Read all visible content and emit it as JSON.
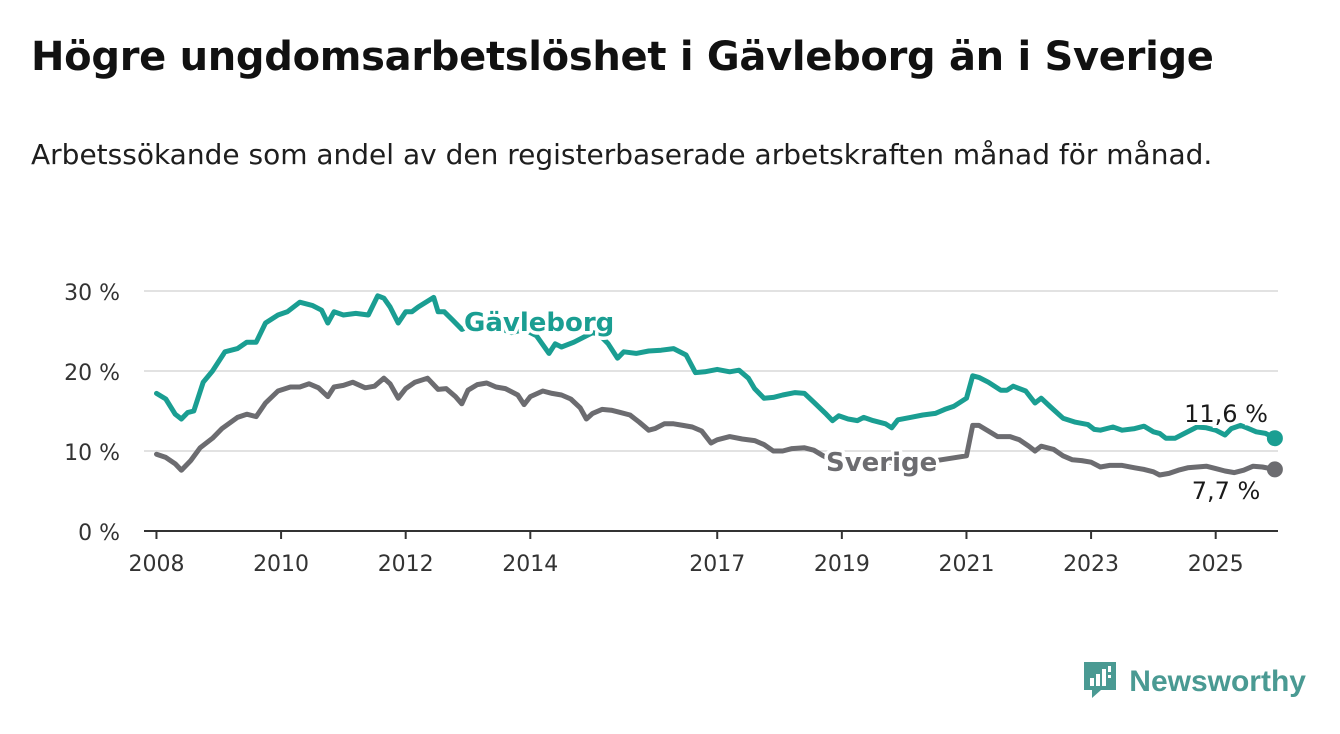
{
  "title": "Högre ungdomsarbetslöshet i Gävleborg än i Sverige",
  "subtitle": "Arbetssökande som andel av den registerbaserade arbetskraften månad för månad.",
  "brand": {
    "name": "Newsworthy",
    "icon": "bar-chart-logo-icon",
    "color": "#4a9a93"
  },
  "chart_data": {
    "type": "line",
    "x_ticks": [
      "2008",
      "2010",
      "2012",
      "2014",
      "2017",
      "2019",
      "2021",
      "2023",
      "2025"
    ],
    "y_ticks": [
      "0 %",
      "10 %",
      "20 %",
      "30 %"
    ],
    "ylim": [
      0,
      30
    ],
    "xlim": [
      2007.8,
      2026.0
    ],
    "grid": true,
    "series": [
      {
        "name": "Gävleborg",
        "color": "#1a9e92",
        "end_label": "11,6 %",
        "points": [
          [
            2008.0,
            17.2
          ],
          [
            2008.15,
            16.5
          ],
          [
            2008.3,
            14.6
          ],
          [
            2008.4,
            14.0
          ],
          [
            2008.5,
            14.8
          ],
          [
            2008.6,
            15.0
          ],
          [
            2008.75,
            18.6
          ],
          [
            2008.9,
            20.0
          ],
          [
            2009.1,
            22.4
          ],
          [
            2009.3,
            22.8
          ],
          [
            2009.45,
            23.6
          ],
          [
            2009.6,
            23.6
          ],
          [
            2009.75,
            26.0
          ],
          [
            2009.95,
            27.0
          ],
          [
            2010.1,
            27.4
          ],
          [
            2010.3,
            28.6
          ],
          [
            2010.5,
            28.2
          ],
          [
            2010.65,
            27.6
          ],
          [
            2010.75,
            26.0
          ],
          [
            2010.85,
            27.4
          ],
          [
            2011.0,
            27.0
          ],
          [
            2011.2,
            27.2
          ],
          [
            2011.4,
            27.0
          ],
          [
            2011.55,
            29.4
          ],
          [
            2011.65,
            29.1
          ],
          [
            2011.75,
            28.0
          ],
          [
            2011.88,
            26.0
          ],
          [
            2012.0,
            27.4
          ],
          [
            2012.1,
            27.4
          ],
          [
            2012.2,
            28.0
          ],
          [
            2012.45,
            29.2
          ],
          [
            2012.52,
            27.4
          ],
          [
            2012.62,
            27.4
          ],
          [
            2012.75,
            26.4
          ],
          [
            2012.9,
            25.2
          ],
          [
            2013.2,
            26.2
          ],
          [
            2013.7,
            24.8
          ],
          [
            2013.9,
            25.2
          ],
          [
            2014.1,
            24.4
          ],
          [
            2014.3,
            22.2
          ],
          [
            2014.4,
            23.4
          ],
          [
            2014.5,
            23.0
          ],
          [
            2014.7,
            23.6
          ],
          [
            2015.0,
            24.8
          ],
          [
            2015.1,
            24.6
          ],
          [
            2015.25,
            23.4
          ],
          [
            2015.4,
            21.6
          ],
          [
            2015.5,
            22.4
          ],
          [
            2015.7,
            22.2
          ],
          [
            2015.9,
            22.5
          ],
          [
            2016.1,
            22.6
          ],
          [
            2016.3,
            22.8
          ],
          [
            2016.5,
            22.0
          ],
          [
            2016.65,
            19.8
          ],
          [
            2016.8,
            19.9
          ],
          [
            2017.0,
            20.2
          ],
          [
            2017.2,
            19.9
          ],
          [
            2017.35,
            20.1
          ],
          [
            2017.5,
            19.1
          ],
          [
            2017.6,
            17.8
          ],
          [
            2017.75,
            16.6
          ],
          [
            2017.9,
            16.7
          ],
          [
            2018.05,
            17.0
          ],
          [
            2018.25,
            17.3
          ],
          [
            2018.4,
            17.2
          ],
          [
            2018.55,
            16.1
          ],
          [
            2018.75,
            14.6
          ],
          [
            2018.85,
            13.8
          ],
          [
            2018.95,
            14.4
          ],
          [
            2019.1,
            14.0
          ],
          [
            2019.25,
            13.8
          ],
          [
            2019.35,
            14.2
          ],
          [
            2019.5,
            13.8
          ],
          [
            2019.7,
            13.4
          ],
          [
            2019.8,
            12.9
          ],
          [
            2019.9,
            13.9
          ],
          [
            2020.1,
            14.2
          ],
          [
            2020.3,
            14.5
          ],
          [
            2020.5,
            14.7
          ],
          [
            2020.65,
            15.2
          ],
          [
            2020.8,
            15.6
          ],
          [
            2021.0,
            16.6
          ],
          [
            2021.1,
            19.4
          ],
          [
            2021.2,
            19.2
          ],
          [
            2021.35,
            18.6
          ],
          [
            2021.55,
            17.6
          ],
          [
            2021.65,
            17.6
          ],
          [
            2021.75,
            18.1
          ],
          [
            2021.95,
            17.5
          ],
          [
            2022.1,
            16.0
          ],
          [
            2022.2,
            16.6
          ],
          [
            2022.35,
            15.5
          ],
          [
            2022.55,
            14.1
          ],
          [
            2022.75,
            13.6
          ],
          [
            2022.95,
            13.3
          ],
          [
            2023.05,
            12.7
          ],
          [
            2023.15,
            12.6
          ],
          [
            2023.35,
            13.0
          ],
          [
            2023.5,
            12.6
          ],
          [
            2023.7,
            12.8
          ],
          [
            2023.85,
            13.1
          ],
          [
            2024.0,
            12.4
          ],
          [
            2024.1,
            12.2
          ],
          [
            2024.2,
            11.6
          ],
          [
            2024.35,
            11.6
          ],
          [
            2024.5,
            12.2
          ],
          [
            2024.7,
            13.0
          ],
          [
            2024.85,
            12.9
          ],
          [
            2025.0,
            12.6
          ],
          [
            2025.15,
            12.0
          ],
          [
            2025.25,
            12.8
          ],
          [
            2025.4,
            13.2
          ],
          [
            2025.5,
            12.9
          ],
          [
            2025.65,
            12.4
          ],
          [
            2025.8,
            12.2
          ],
          [
            2025.95,
            11.6
          ]
        ]
      },
      {
        "name": "Sverige",
        "color": "#6c6c70",
        "end_label": "7,7 %",
        "points": [
          [
            2008.0,
            9.6
          ],
          [
            2008.15,
            9.2
          ],
          [
            2008.3,
            8.4
          ],
          [
            2008.4,
            7.6
          ],
          [
            2008.55,
            8.8
          ],
          [
            2008.7,
            10.4
          ],
          [
            2008.9,
            11.6
          ],
          [
            2009.05,
            12.8
          ],
          [
            2009.3,
            14.2
          ],
          [
            2009.45,
            14.6
          ],
          [
            2009.6,
            14.3
          ],
          [
            2009.75,
            16.0
          ],
          [
            2009.95,
            17.5
          ],
          [
            2010.15,
            18.0
          ],
          [
            2010.3,
            18.0
          ],
          [
            2010.45,
            18.4
          ],
          [
            2010.6,
            17.9
          ],
          [
            2010.75,
            16.8
          ],
          [
            2010.85,
            18.0
          ],
          [
            2011.0,
            18.2
          ],
          [
            2011.15,
            18.6
          ],
          [
            2011.35,
            17.9
          ],
          [
            2011.5,
            18.1
          ],
          [
            2011.65,
            19.1
          ],
          [
            2011.75,
            18.4
          ],
          [
            2011.88,
            16.6
          ],
          [
            2012.0,
            17.8
          ],
          [
            2012.15,
            18.6
          ],
          [
            2012.35,
            19.1
          ],
          [
            2012.52,
            17.7
          ],
          [
            2012.65,
            17.8
          ],
          [
            2012.8,
            16.8
          ],
          [
            2012.9,
            15.9
          ],
          [
            2013.0,
            17.6
          ],
          [
            2013.15,
            18.3
          ],
          [
            2013.3,
            18.5
          ],
          [
            2013.45,
            18.0
          ],
          [
            2013.6,
            17.8
          ],
          [
            2013.8,
            17.0
          ],
          [
            2013.9,
            15.8
          ],
          [
            2014.0,
            16.8
          ],
          [
            2014.2,
            17.5
          ],
          [
            2014.35,
            17.2
          ],
          [
            2014.5,
            17.0
          ],
          [
            2014.65,
            16.5
          ],
          [
            2014.8,
            15.4
          ],
          [
            2014.9,
            14.0
          ],
          [
            2015.0,
            14.7
          ],
          [
            2015.15,
            15.2
          ],
          [
            2015.3,
            15.1
          ],
          [
            2015.45,
            14.8
          ],
          [
            2015.6,
            14.5
          ],
          [
            2015.75,
            13.6
          ],
          [
            2015.9,
            12.6
          ],
          [
            2016.0,
            12.8
          ],
          [
            2016.15,
            13.4
          ],
          [
            2016.3,
            13.4
          ],
          [
            2016.45,
            13.2
          ],
          [
            2016.6,
            13.0
          ],
          [
            2016.75,
            12.5
          ],
          [
            2016.9,
            11.0
          ],
          [
            2017.0,
            11.4
          ],
          [
            2017.2,
            11.8
          ],
          [
            2017.4,
            11.5
          ],
          [
            2017.6,
            11.3
          ],
          [
            2017.75,
            10.8
          ],
          [
            2017.9,
            10.0
          ],
          [
            2018.05,
            10.0
          ],
          [
            2018.2,
            10.3
          ],
          [
            2018.4,
            10.4
          ],
          [
            2018.55,
            10.1
          ],
          [
            2018.7,
            9.4
          ],
          [
            2018.85,
            8.8
          ],
          [
            2019.0,
            8.2
          ],
          [
            2019.2,
            8.6
          ],
          [
            2020.35,
            8.6
          ],
          [
            2021.0,
            9.4
          ],
          [
            2021.1,
            13.2
          ],
          [
            2021.2,
            13.2
          ],
          [
            2021.35,
            12.5
          ],
          [
            2021.5,
            11.8
          ],
          [
            2021.7,
            11.8
          ],
          [
            2021.85,
            11.4
          ],
          [
            2022.0,
            10.6
          ],
          [
            2022.1,
            10.0
          ],
          [
            2022.2,
            10.6
          ],
          [
            2022.4,
            10.2
          ],
          [
            2022.55,
            9.4
          ],
          [
            2022.7,
            8.9
          ],
          [
            2022.85,
            8.8
          ],
          [
            2023.0,
            8.6
          ],
          [
            2023.15,
            8.0
          ],
          [
            2023.3,
            8.2
          ],
          [
            2023.5,
            8.2
          ],
          [
            2023.7,
            7.9
          ],
          [
            2023.85,
            7.7
          ],
          [
            2024.0,
            7.4
          ],
          [
            2024.1,
            7.0
          ],
          [
            2024.25,
            7.2
          ],
          [
            2024.4,
            7.6
          ],
          [
            2024.55,
            7.9
          ],
          [
            2024.7,
            8.0
          ],
          [
            2024.85,
            8.1
          ],
          [
            2025.0,
            7.8
          ],
          [
            2025.15,
            7.5
          ],
          [
            2025.3,
            7.3
          ],
          [
            2025.45,
            7.6
          ],
          [
            2025.6,
            8.1
          ],
          [
            2025.75,
            8.0
          ],
          [
            2025.95,
            7.7
          ]
        ]
      }
    ]
  }
}
